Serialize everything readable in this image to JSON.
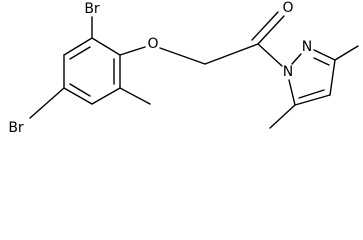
{
  "atoms": [
    {
      "label": "Br"
    },
    {
      "label": "Br"
    },
    {
      "label": "O"
    },
    {
      "label": "O"
    },
    {
      "label": "N"
    },
    {
      "label": "N"
    }
  ]
}
